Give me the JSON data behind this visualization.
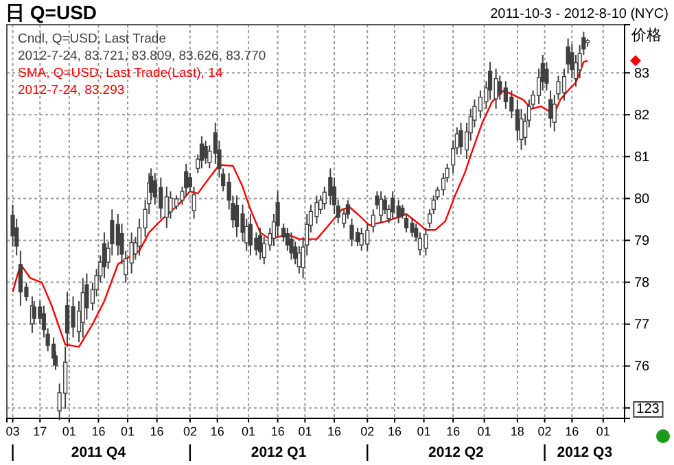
{
  "chart_data": {
    "type": "candlestick",
    "title": "日 Q=USD",
    "subtitle": "2011-10-3 - 2012-8-10 (NYC)",
    "ylabel": "价格",
    "xlim": [
      "2011-09-30",
      "2012-08-12"
    ],
    "xticks": [
      {
        "value": "2011-10-03",
        "label": "03"
      },
      {
        "value": "2011-10-17",
        "label": "17"
      },
      {
        "value": "2011-11-01",
        "label": "01"
      },
      {
        "value": "2011-11-16",
        "label": "16"
      },
      {
        "value": "2011-12-01",
        "label": "01"
      },
      {
        "value": "2011-12-16",
        "label": "16"
      },
      {
        "value": "2012-01-02",
        "label": "02"
      },
      {
        "value": "2012-01-16",
        "label": "16"
      },
      {
        "value": "2012-02-01",
        "label": "01"
      },
      {
        "value": "2012-02-16",
        "label": "16"
      },
      {
        "value": "2012-03-01",
        "label": "01"
      },
      {
        "value": "2012-03-16",
        "label": "16"
      },
      {
        "value": "2012-04-02",
        "label": "02"
      },
      {
        "value": "2012-04-16",
        "label": "16"
      },
      {
        "value": "2012-05-01",
        "label": "01"
      },
      {
        "value": "2012-05-16",
        "label": "16"
      },
      {
        "value": "2012-06-01",
        "label": "01"
      },
      {
        "value": "2012-06-18",
        "label": "18"
      },
      {
        "value": "2012-07-02",
        "label": "02"
      },
      {
        "value": "2012-07-16",
        "label": "16"
      },
      {
        "value": "2012-08-01",
        "label": "01"
      }
    ],
    "ylim": [
      74.75,
      84.15
    ],
    "yticks": [
      {
        "value": 75,
        "label": null
      },
      76,
      77,
      78,
      79,
      80,
      81,
      82,
      83
    ],
    "grid": true,
    "legend": "top left",
    "annotations": [
      "2012-7-24, 83.721, 83.809, 83.626, 83.770",
      "2012-7-24, 83.293",
      "2011 Q4",
      "2012 Q1",
      "2012 Q2",
      "2012 Q3",
      "123"
    ],
    "series": [
      {
        "name": "Cndl, Q=USD, Last Trade",
        "color": "#404040",
        "x": [
          "2011-10-03",
          "2011-10-05",
          "2011-10-07",
          "2011-10-10",
          "2011-10-13",
          "2011-10-14",
          "2011-10-17",
          "2011-10-19",
          "2011-10-21",
          "2011-10-24",
          "2011-10-25",
          "2011-10-27",
          "2011-10-30",
          "2011-10-31",
          "2011-11-03",
          "2011-11-06",
          "2011-11-08",
          "2011-11-10",
          "2011-11-13",
          "2011-11-15",
          "2011-11-17",
          "2011-11-19",
          "2011-11-21",
          "2011-11-23",
          "2011-11-26",
          "2011-11-28",
          "2011-11-30",
          "2011-12-03",
          "2011-12-05",
          "2011-12-07",
          "2011-12-10",
          "2011-12-12",
          "2011-12-13",
          "2011-12-15",
          "2011-12-18",
          "2011-12-21",
          "2011-12-23",
          "2011-12-26",
          "2011-12-29",
          "2011-12-31",
          "2012-01-02",
          "2012-01-04",
          "2012-01-06",
          "2012-01-08",
          "2012-01-10",
          "2012-01-12",
          "2012-01-15",
          "2012-01-17",
          "2012-01-19",
          "2012-01-22",
          "2012-01-24",
          "2012-01-26",
          "2012-01-29",
          "2012-01-31",
          "2012-02-02",
          "2012-02-05",
          "2012-02-07",
          "2012-02-09",
          "2012-02-12",
          "2012-02-14",
          "2012-02-16",
          "2012-02-19",
          "2012-02-21",
          "2012-02-23",
          "2012-02-25",
          "2012-02-27",
          "2012-02-29",
          "2012-03-02",
          "2012-03-04",
          "2012-03-07",
          "2012-03-09",
          "2012-03-11",
          "2012-03-14",
          "2012-03-16",
          "2012-03-18",
          "2012-03-21",
          "2012-03-23",
          "2012-03-25",
          "2012-03-28",
          "2012-03-30",
          "2012-04-02",
          "2012-04-05",
          "2012-04-07",
          "2012-04-09",
          "2012-04-11",
          "2012-04-13",
          "2012-04-15",
          "2012-04-18",
          "2012-04-20",
          "2012-04-22",
          "2012-04-25",
          "2012-04-27",
          "2012-04-29",
          "2012-05-02",
          "2012-05-04",
          "2012-05-06",
          "2012-05-08",
          "2012-05-11",
          "2012-05-13",
          "2012-05-16",
          "2012-05-18",
          "2012-05-20",
          "2012-05-23",
          "2012-05-25",
          "2012-05-27",
          "2012-05-30",
          "2012-06-02",
          "2012-06-04",
          "2012-06-07",
          "2012-06-09",
          "2012-06-12",
          "2012-06-15",
          "2012-06-18",
          "2012-06-20",
          "2012-06-22",
          "2012-06-24",
          "2012-06-26",
          "2012-06-29",
          "2012-07-01",
          "2012-07-03",
          "2012-07-05",
          "2012-07-07",
          "2012-07-09",
          "2012-07-12",
          "2012-07-14",
          "2012-07-16",
          "2012-07-18",
          "2012-07-20",
          "2012-07-22",
          "2012-07-24"
        ],
        "ohlc": [
          [
            79.6,
            79.85,
            78.86,
            79.11
          ],
          [
            79.3,
            79.52,
            78.64,
            78.86
          ],
          [
            78.42,
            78.75,
            77.44,
            77.77
          ],
          [
            77.88,
            77.99,
            77.55,
            77.66
          ],
          [
            77.01,
            77.66,
            76.79,
            77.44
          ],
          [
            77.41,
            77.55,
            77.0,
            77.14
          ],
          [
            77.41,
            77.55,
            77.0,
            77.14
          ],
          [
            77.25,
            77.44,
            76.68,
            76.87
          ],
          [
            76.76,
            76.9,
            76.35,
            76.49
          ],
          [
            76.52,
            76.68,
            76.02,
            76.19
          ],
          [
            76.24,
            76.35,
            75.91,
            76.02
          ],
          [
            74.93,
            75.58,
            74.71,
            75.36
          ],
          [
            75.35,
            76.46,
            74.98,
            76.09
          ],
          [
            77.44,
            77.77,
            76.46,
            76.79
          ],
          [
            77.42,
            77.66,
            76.68,
            76.93
          ],
          [
            76.82,
            77.55,
            76.57,
            77.31
          ],
          [
            77.04,
            78.1,
            76.68,
            77.75
          ],
          [
            77.94,
            78.21,
            77.11,
            77.39
          ],
          [
            77.5,
            77.99,
            77.33,
            77.82
          ],
          [
            77.83,
            78.32,
            77.66,
            78.16
          ],
          [
            78.15,
            78.64,
            77.99,
            78.48
          ],
          [
            78.92,
            79.19,
            78.1,
            78.37
          ],
          [
            78.48,
            78.97,
            78.32,
            78.81
          ],
          [
            79.47,
            79.74,
            78.64,
            78.92
          ],
          [
            79.38,
            79.63,
            78.64,
            78.89
          ],
          [
            79.16,
            79.4,
            78.43,
            78.67
          ],
          [
            78.18,
            78.75,
            77.99,
            78.56
          ],
          [
            78.46,
            79.19,
            78.21,
            78.95
          ],
          [
            78.68,
            79.08,
            78.54,
            78.94
          ],
          [
            78.86,
            79.52,
            78.64,
            79.3
          ],
          [
            79.3,
            79.96,
            79.08,
            79.74
          ],
          [
            79.88,
            80.61,
            79.63,
            80.37
          ],
          [
            80.53,
            80.72,
            79.96,
            80.15
          ],
          [
            80.42,
            80.61,
            79.85,
            80.04
          ],
          [
            80.26,
            80.5,
            79.52,
            79.77
          ],
          [
            79.55,
            80.28,
            79.3,
            80.04
          ],
          [
            79.68,
            80.17,
            79.52,
            80.01
          ],
          [
            79.82,
            80.07,
            79.74,
            79.99
          ],
          [
            79.96,
            80.28,
            79.85,
            80.17
          ],
          [
            80.64,
            80.83,
            80.07,
            80.26
          ],
          [
            80.5,
            80.61,
            80.17,
            80.28
          ],
          [
            79.71,
            80.28,
            79.52,
            80.09
          ],
          [
            80.72,
            81.05,
            80.61,
            80.94
          ],
          [
            81.3,
            81.49,
            80.72,
            80.91
          ],
          [
            81.24,
            81.38,
            80.83,
            80.97
          ],
          [
            80.86,
            81.27,
            80.72,
            81.13
          ],
          [
            81.57,
            81.81,
            80.83,
            81.08
          ],
          [
            81.16,
            81.38,
            80.5,
            80.72
          ],
          [
            80.58,
            80.72,
            80.17,
            80.31
          ],
          [
            80.39,
            80.61,
            79.74,
            79.96
          ],
          [
            79.88,
            80.07,
            79.3,
            79.49
          ],
          [
            79.83,
            80.07,
            79.08,
            79.33
          ],
          [
            79.63,
            79.85,
            78.97,
            79.19
          ],
          [
            78.94,
            79.52,
            78.75,
            79.33
          ],
          [
            79.38,
            79.63,
            78.64,
            78.89
          ],
          [
            79.05,
            79.19,
            78.64,
            78.78
          ],
          [
            79.11,
            79.3,
            78.54,
            78.73
          ],
          [
            78.59,
            79.08,
            78.43,
            78.92
          ],
          [
            78.89,
            79.3,
            78.75,
            79.16
          ],
          [
            79.05,
            79.63,
            78.86,
            79.44
          ],
          [
            79.9,
            80.17,
            79.08,
            79.35
          ],
          [
            79.29,
            79.4,
            78.97,
            79.08
          ],
          [
            79.16,
            79.3,
            78.75,
            78.89
          ],
          [
            79.03,
            79.19,
            78.54,
            78.7
          ],
          [
            78.84,
            78.97,
            78.43,
            78.57
          ],
          [
            78.37,
            78.86,
            78.21,
            78.7
          ],
          [
            78.35,
            79.08,
            78.1,
            78.84
          ],
          [
            78.89,
            79.63,
            78.64,
            79.38
          ],
          [
            79.36,
            79.85,
            79.19,
            79.69
          ],
          [
            79.57,
            80.07,
            79.4,
            79.9
          ],
          [
            79.74,
            80.07,
            79.63,
            79.96
          ],
          [
            79.88,
            80.28,
            79.74,
            80.15
          ],
          [
            80.5,
            80.72,
            79.85,
            80.07
          ],
          [
            80.28,
            80.5,
            79.63,
            79.85
          ],
          [
            79.82,
            79.96,
            79.41,
            79.55
          ],
          [
            79.41,
            79.74,
            79.3,
            79.63
          ],
          [
            79.85,
            79.96,
            79.52,
            79.63
          ],
          [
            79.36,
            79.52,
            78.86,
            79.03
          ],
          [
            79.19,
            79.3,
            78.86,
            78.97
          ],
          [
            78.89,
            79.3,
            78.75,
            79.16
          ],
          [
            78.91,
            79.4,
            78.75,
            79.24
          ],
          [
            79.33,
            79.74,
            79.19,
            79.6
          ],
          [
            80.06,
            80.17,
            79.74,
            79.85
          ],
          [
            79.6,
            80.17,
            79.41,
            79.98
          ],
          [
            79.96,
            80.07,
            79.63,
            79.74
          ],
          [
            79.52,
            79.85,
            79.41,
            79.74
          ],
          [
            80.01,
            80.17,
            79.52,
            79.68
          ],
          [
            79.82,
            79.96,
            79.41,
            79.55
          ],
          [
            79.77,
            79.85,
            79.52,
            79.6
          ],
          [
            79.52,
            79.63,
            79.19,
            79.3
          ],
          [
            79.41,
            79.52,
            79.08,
            79.19
          ],
          [
            79.29,
            79.4,
            78.97,
            79.08
          ],
          [
            78.78,
            79.19,
            78.64,
            79.05
          ],
          [
            78.81,
            79.3,
            78.64,
            79.14
          ],
          [
            79.41,
            79.74,
            79.3,
            79.63
          ],
          [
            79.74,
            80.07,
            79.63,
            79.96
          ],
          [
            80.04,
            80.28,
            79.96,
            80.2
          ],
          [
            80.21,
            80.61,
            80.07,
            80.48
          ],
          [
            80.5,
            80.83,
            80.39,
            80.72
          ],
          [
            80.8,
            81.38,
            80.61,
            81.19
          ],
          [
            81.21,
            81.7,
            81.05,
            81.54
          ],
          [
            81.62,
            81.81,
            81.05,
            81.24
          ],
          [
            81.16,
            81.81,
            80.94,
            81.59
          ],
          [
            81.57,
            82.14,
            81.38,
            81.95
          ],
          [
            81.87,
            82.36,
            81.7,
            82.2
          ],
          [
            82.09,
            82.58,
            81.92,
            82.42
          ],
          [
            82.31,
            82.8,
            82.14,
            82.64
          ],
          [
            83.04,
            83.26,
            82.36,
            82.59
          ],
          [
            82.38,
            83.1,
            82.14,
            82.86
          ],
          [
            82.79,
            82.93,
            82.36,
            82.5
          ],
          [
            82.64,
            82.8,
            82.14,
            82.31
          ],
          [
            82.42,
            82.58,
            81.92,
            82.09
          ],
          [
            82.12,
            82.36,
            81.38,
            81.63
          ],
          [
            81.41,
            82.14,
            81.16,
            81.9
          ],
          [
            81.46,
            82.03,
            81.27,
            81.84
          ],
          [
            81.87,
            82.36,
            81.7,
            82.2
          ],
          [
            82.25,
            82.58,
            82.14,
            82.47
          ],
          [
            82.46,
            83.1,
            82.25,
            82.89
          ],
          [
            83.22,
            83.43,
            82.58,
            82.79
          ],
          [
            83.09,
            83.26,
            82.58,
            82.75
          ],
          [
            82.36,
            82.58,
            81.7,
            81.92
          ],
          [
            81.82,
            82.47,
            81.6,
            82.25
          ],
          [
            82.5,
            82.93,
            82.36,
            82.79
          ],
          [
            82.53,
            83.1,
            82.34,
            82.91
          ],
          [
            83.62,
            83.82,
            83.0,
            83.21
          ],
          [
            83.48,
            83.69,
            82.87,
            83.08
          ],
          [
            82.86,
            83.43,
            82.67,
            83.24
          ],
          [
            83.07,
            83.66,
            82.87,
            83.46
          ],
          [
            83.84,
            83.98,
            83.43,
            83.57
          ],
          [
            83.721,
            83.809,
            83.626,
            83.77
          ]
        ]
      },
      {
        "name": "SMA, Q=USD, Last Trade(Last), 14",
        "type": "line",
        "color": "#ff0000",
        "x": [
          "2011-10-03",
          "2011-10-07",
          "2011-10-12",
          "2011-10-18",
          "2011-10-23",
          "2011-10-30",
          "2011-11-06",
          "2011-11-13",
          "2011-11-19",
          "2011-11-26",
          "2011-12-03",
          "2011-12-07",
          "2011-12-12",
          "2011-12-19",
          "2011-12-27",
          "2012-01-02",
          "2012-01-06",
          "2012-01-12",
          "2012-01-17",
          "2012-01-24",
          "2012-01-29",
          "2012-02-02",
          "2012-02-07",
          "2012-02-12",
          "2012-02-21",
          "2012-02-27",
          "2012-03-07",
          "2012-03-12",
          "2012-03-20",
          "2012-03-24",
          "2012-03-28",
          "2012-04-03",
          "2012-04-12",
          "2012-04-19",
          "2012-04-22",
          "2012-04-28",
          "2012-05-02",
          "2012-05-07",
          "2012-05-12",
          "2012-05-17",
          "2012-05-22",
          "2012-05-26",
          "2012-05-31",
          "2012-06-05",
          "2012-06-11",
          "2012-06-16",
          "2012-06-21",
          "2012-06-25",
          "2012-06-30",
          "2012-07-04",
          "2012-07-07",
          "2012-07-10",
          "2012-07-15",
          "2012-07-18",
          "2012-07-22",
          "2012-07-24"
        ],
        "values": [
          77.77,
          78.43,
          78.1,
          77.99,
          77.44,
          76.51,
          76.46,
          77.0,
          77.55,
          78.43,
          78.64,
          78.75,
          79.19,
          79.52,
          79.85,
          80.17,
          80.12,
          80.5,
          80.8,
          80.78,
          80.28,
          79.74,
          79.19,
          79.03,
          79.14,
          79.03,
          79.03,
          79.3,
          79.74,
          79.79,
          79.63,
          79.36,
          79.46,
          79.57,
          79.63,
          79.41,
          79.25,
          79.25,
          79.46,
          80.07,
          80.61,
          81.16,
          81.81,
          82.31,
          82.58,
          82.47,
          82.36,
          82.14,
          82.2,
          82.09,
          82.03,
          82.36,
          82.63,
          82.77,
          83.26,
          83.29
        ]
      }
    ]
  }
}
